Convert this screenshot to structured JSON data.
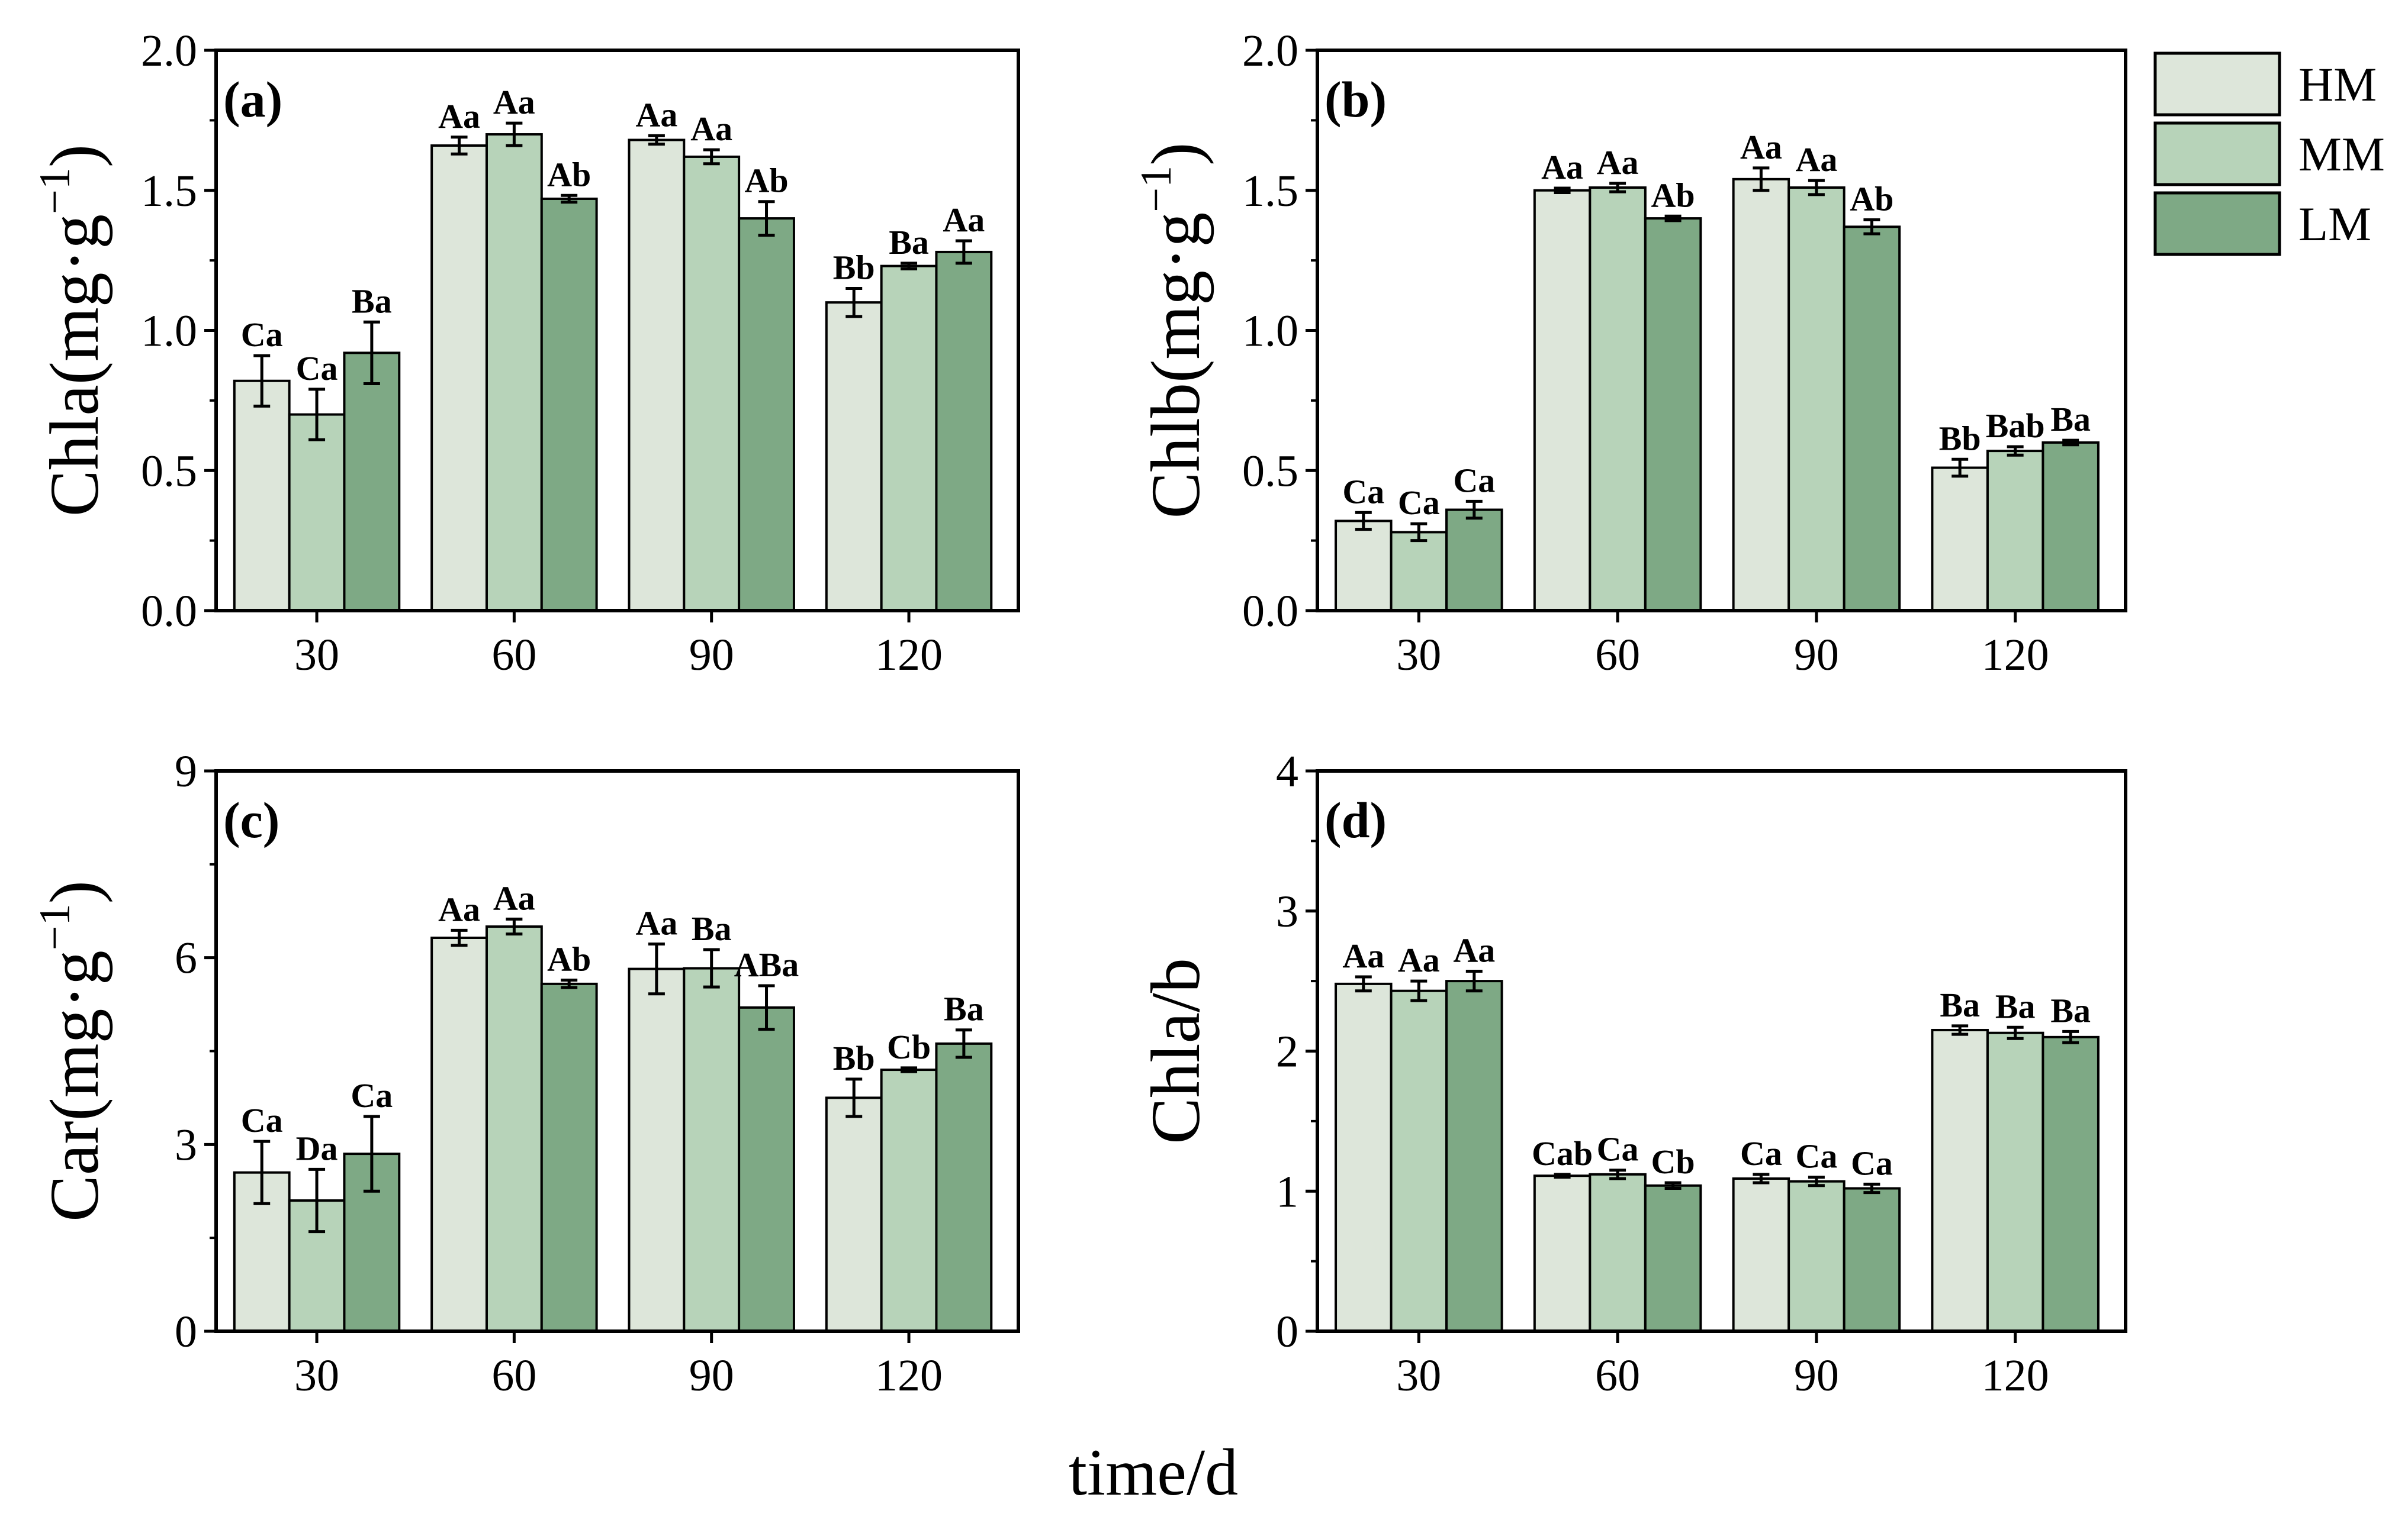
{
  "figure": {
    "xlabel": "time/d",
    "legend": [
      {
        "name": "HM",
        "color": "#dde6da"
      },
      {
        "name": "MM",
        "color": "#b7d3b9"
      },
      {
        "name": "LM",
        "color": "#7ea985"
      }
    ]
  },
  "chart_data": [
    {
      "type": "bar",
      "panel": "(a)",
      "title": "",
      "xlabel": "time/d",
      "ylabel": "Chla(mg·g⁻¹)",
      "ylabel_base": "Chla(mg·g",
      "ylabel_sup": "−1",
      "ylabel_end": ")",
      "ylim": [
        0,
        2.0
      ],
      "yticks": [
        0.0,
        0.5,
        1.0,
        1.5,
        2.0
      ],
      "ytick_labels": [
        "0.0",
        "0.5",
        "1.0",
        "1.5",
        "2.0"
      ],
      "categories": [
        "30",
        "60",
        "90",
        "120"
      ],
      "series": [
        {
          "name": "HM",
          "values": [
            0.82,
            1.66,
            1.68,
            1.1
          ],
          "errors": [
            0.09,
            0.03,
            0.015,
            0.05
          ],
          "labels": [
            "Ca",
            "Aa",
            "Aa",
            "Bb"
          ]
        },
        {
          "name": "MM",
          "values": [
            0.7,
            1.7,
            1.62,
            1.23
          ],
          "errors": [
            0.09,
            0.04,
            0.025,
            0.01
          ],
          "labels": [
            "Ca",
            "Aa",
            "Aa",
            "Ba"
          ]
        },
        {
          "name": "LM",
          "values": [
            0.92,
            1.47,
            1.4,
            1.28
          ],
          "errors": [
            0.11,
            0.012,
            0.06,
            0.04
          ],
          "labels": [
            "Ba",
            "Ab",
            "Ab",
            "Aa"
          ]
        }
      ]
    },
    {
      "type": "bar",
      "panel": "(b)",
      "title": "",
      "xlabel": "time/d",
      "ylabel": "Chlb(mg·g⁻¹)",
      "ylabel_base": "Chlb(mg·g",
      "ylabel_sup": "−1",
      "ylabel_end": ")",
      "ylim": [
        0,
        2.0
      ],
      "yticks": [
        0.0,
        0.5,
        1.0,
        1.5,
        2.0
      ],
      "ytick_labels": [
        "0.0",
        "0.5",
        "1.0",
        "1.5",
        "2.0"
      ],
      "categories": [
        "30",
        "60",
        "90",
        "120"
      ],
      "series": [
        {
          "name": "HM",
          "values": [
            0.32,
            1.5,
            1.54,
            0.51
          ],
          "errors": [
            0.03,
            0.008,
            0.04,
            0.03
          ],
          "labels": [
            "Ca",
            "Aa",
            "Aa",
            "Bb"
          ]
        },
        {
          "name": "MM",
          "values": [
            0.28,
            1.51,
            1.51,
            0.57
          ],
          "errors": [
            0.03,
            0.015,
            0.025,
            0.015
          ],
          "labels": [
            "Ca",
            "Aa",
            "Aa",
            "Bab"
          ]
        },
        {
          "name": "LM",
          "values": [
            0.36,
            1.4,
            1.37,
            0.6
          ],
          "errors": [
            0.03,
            0.008,
            0.025,
            0.008
          ],
          "labels": [
            "Ca",
            "Ab",
            "Ab",
            "Ba"
          ]
        }
      ]
    },
    {
      "type": "bar",
      "panel": "(c)",
      "title": "",
      "xlabel": "time/d",
      "ylabel": "Car(mg·g⁻¹)",
      "ylabel_base": "Car(mg·g",
      "ylabel_sup": "−1",
      "ylabel_end": ")",
      "ylim": [
        0,
        9
      ],
      "yticks": [
        0,
        3,
        6,
        9
      ],
      "ytick_labels": [
        "0",
        "3",
        "6",
        "9"
      ],
      "categories": [
        "30",
        "60",
        "90",
        "120"
      ],
      "series": [
        {
          "name": "HM",
          "values": [
            2.55,
            6.32,
            5.82,
            3.75
          ],
          "errors": [
            0.5,
            0.12,
            0.4,
            0.3
          ],
          "labels": [
            "Ca",
            "Aa",
            "Aa",
            "Bb"
          ]
        },
        {
          "name": "MM",
          "values": [
            2.1,
            6.5,
            5.83,
            4.2
          ],
          "errors": [
            0.5,
            0.12,
            0.3,
            0.03
          ],
          "labels": [
            "Da",
            "Aa",
            "Ba",
            "Cb"
          ]
        },
        {
          "name": "LM",
          "values": [
            2.85,
            5.58,
            5.2,
            4.62
          ],
          "errors": [
            0.6,
            0.06,
            0.35,
            0.22
          ],
          "labels": [
            "Ca",
            "Ab",
            "ABa",
            "Ba"
          ]
        }
      ]
    },
    {
      "type": "bar",
      "panel": "(d)",
      "title": "",
      "xlabel": "time/d",
      "ylabel": "Chla/b",
      "ylabel_base": "Chla/b",
      "ylabel_sup": "",
      "ylabel_end": "",
      "ylim": [
        0,
        4
      ],
      "yticks": [
        0,
        1,
        2,
        3,
        4
      ],
      "ytick_labels": [
        "0",
        "1",
        "2",
        "3",
        "4"
      ],
      "categories": [
        "30",
        "60",
        "90",
        "120"
      ],
      "series": [
        {
          "name": "HM",
          "values": [
            2.48,
            1.11,
            1.09,
            2.15
          ],
          "errors": [
            0.05,
            0.01,
            0.03,
            0.03
          ],
          "labels": [
            "Aa",
            "Cab",
            "Ca",
            "Ba"
          ]
        },
        {
          "name": "MM",
          "values": [
            2.43,
            1.12,
            1.07,
            2.13
          ],
          "errors": [
            0.07,
            0.03,
            0.03,
            0.04
          ],
          "labels": [
            "Aa",
            "Ca",
            "Ca",
            "Ba"
          ]
        },
        {
          "name": "LM",
          "values": [
            2.5,
            1.04,
            1.02,
            2.1
          ],
          "errors": [
            0.07,
            0.02,
            0.03,
            0.04
          ],
          "labels": [
            "Aa",
            "Cb",
            "Ca",
            "Ba"
          ]
        }
      ]
    }
  ]
}
